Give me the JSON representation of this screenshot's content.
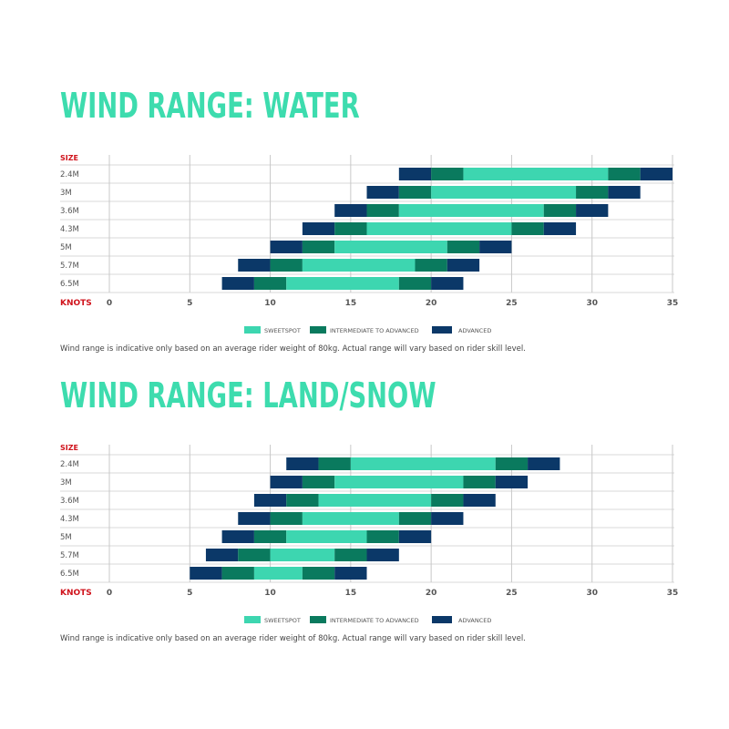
{
  "colors": {
    "title": "#3ddcae",
    "sweetspot": "#3dd6b0",
    "intermediate": "#0a7a5e",
    "advanced": "#0b3868",
    "axis_label": "#d0131c",
    "grid": "#c8c8c8"
  },
  "chart_data": [
    {
      "type": "bar",
      "orientation": "horizontal-stacked-range",
      "title": "WIND RANGE: WATER",
      "ylabel": "SIZE",
      "xlabel": "KNOTS",
      "xlim": [
        0,
        35
      ],
      "xticks": [
        0,
        5,
        10,
        15,
        20,
        25,
        30,
        35
      ],
      "grid": true,
      "legend_position": "bottom",
      "legend": [
        "SWEETSPOT",
        "INTERMEDIATE TO ADVANCED",
        "ADVANCED"
      ],
      "segment_order": [
        "ADVANCED",
        "INTERMEDIATE TO ADVANCED",
        "SWEETSPOT",
        "INTERMEDIATE TO ADVANCED",
        "ADVANCED"
      ],
      "rows": [
        {
          "size": "2.4M",
          "breaks": [
            18,
            20,
            22,
            31,
            33,
            35
          ]
        },
        {
          "size": "3M",
          "breaks": [
            16,
            18,
            20,
            29,
            31,
            33
          ]
        },
        {
          "size": "3.6M",
          "breaks": [
            14,
            16,
            18,
            27,
            29,
            31
          ]
        },
        {
          "size": "4.3M",
          "breaks": [
            12,
            14,
            16,
            25,
            27,
            29
          ]
        },
        {
          "size": "5M",
          "breaks": [
            10,
            12,
            14,
            21,
            23,
            25
          ]
        },
        {
          "size": "5.7M",
          "breaks": [
            8,
            10,
            12,
            19,
            21,
            23
          ]
        },
        {
          "size": "6.5M",
          "breaks": [
            7,
            9,
            11,
            18,
            20,
            22
          ]
        }
      ],
      "note": "Wind range is indicative only based on an average rider weight of 80kg. Actual range will vary based on rider skill level."
    },
    {
      "type": "bar",
      "orientation": "horizontal-stacked-range",
      "title": "WIND RANGE: LAND/SNOW",
      "ylabel": "SIZE",
      "xlabel": "KNOTS",
      "xlim": [
        0,
        35
      ],
      "xticks": [
        0,
        5,
        10,
        15,
        20,
        25,
        30,
        35
      ],
      "grid": true,
      "legend_position": "bottom",
      "legend": [
        "SWEETSPOT",
        "INTERMEDIATE TO ADVANCED",
        "ADVANCED"
      ],
      "segment_order": [
        "ADVANCED",
        "INTERMEDIATE TO ADVANCED",
        "SWEETSPOT",
        "INTERMEDIATE TO ADVANCED",
        "ADVANCED"
      ],
      "rows": [
        {
          "size": "2.4M",
          "breaks": [
            11,
            13,
            15,
            24,
            26,
            28
          ]
        },
        {
          "size": "3M",
          "breaks": [
            10,
            12,
            14,
            22,
            24,
            26
          ]
        },
        {
          "size": "3.6M",
          "breaks": [
            9,
            11,
            13,
            20,
            22,
            24
          ]
        },
        {
          "size": "4.3M",
          "breaks": [
            8,
            10,
            12,
            18,
            20,
            22
          ]
        },
        {
          "size": "5M",
          "breaks": [
            7,
            9,
            11,
            16,
            18,
            20
          ]
        },
        {
          "size": "5.7M",
          "breaks": [
            6,
            8,
            10,
            14,
            16,
            18
          ]
        },
        {
          "size": "6.5M",
          "breaks": [
            5,
            7,
            9,
            12,
            14,
            16
          ]
        }
      ],
      "note": "Wind range is indicative only based on an average rider weight of 80kg. Actual range will vary based on rider skill level."
    }
  ]
}
